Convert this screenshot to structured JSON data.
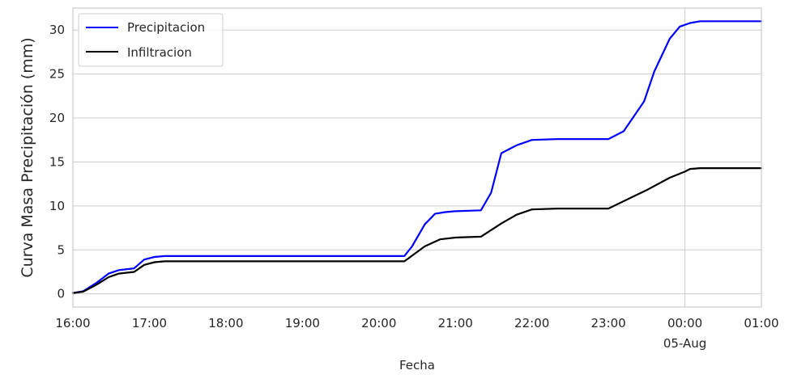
{
  "chart_data": {
    "type": "line",
    "title": "",
    "xlabel": "Fecha",
    "ylabel": "Curva Masa Precipitación (mm)",
    "ylim": [
      -1.5,
      32.5
    ],
    "xlim": [
      0,
      9
    ],
    "grid": true,
    "legend_position": "top-left",
    "x_ticks": [
      {
        "value": 0,
        "label": "16:00",
        "sublabel": ""
      },
      {
        "value": 1,
        "label": "17:00",
        "sublabel": ""
      },
      {
        "value": 2,
        "label": "18:00",
        "sublabel": ""
      },
      {
        "value": 3,
        "label": "19:00",
        "sublabel": ""
      },
      {
        "value": 4,
        "label": "20:00",
        "sublabel": ""
      },
      {
        "value": 5,
        "label": "21:00",
        "sublabel": ""
      },
      {
        "value": 6,
        "label": "22:00",
        "sublabel": ""
      },
      {
        "value": 7,
        "label": "23:00",
        "sublabel": ""
      },
      {
        "value": 8,
        "label": "00:00",
        "sublabel": "05-Aug"
      },
      {
        "value": 9,
        "label": "01:00",
        "sublabel": ""
      }
    ],
    "y_ticks": [
      0,
      5,
      10,
      15,
      20,
      25,
      30
    ],
    "series": [
      {
        "name": "Precipitacion",
        "color": "#0000ff",
        "x": [
          0,
          0.133,
          0.3,
          0.467,
          0.6,
          0.8,
          0.933,
          1.067,
          1.2,
          1.333,
          2.0,
          3.0,
          4.0,
          4.333,
          4.433,
          4.6,
          4.733,
          4.867,
          5.0,
          5.333,
          5.467,
          5.6,
          5.8,
          6.0,
          6.333,
          6.6,
          6.867,
          7.0,
          7.2,
          7.467,
          7.6,
          7.8,
          7.933,
          8.067,
          8.2,
          8.5,
          9.0
        ],
        "y": [
          0.1,
          0.3,
          1.2,
          2.3,
          2.7,
          2.9,
          3.9,
          4.2,
          4.3,
          4.3,
          4.3,
          4.3,
          4.3,
          4.3,
          5.4,
          7.9,
          9.1,
          9.3,
          9.4,
          9.5,
          11.5,
          16.0,
          16.9,
          17.5,
          17.6,
          17.6,
          17.6,
          17.6,
          18.5,
          21.9,
          25.3,
          29.0,
          30.4,
          30.8,
          31.0,
          31.0,
          31.0
        ]
      },
      {
        "name": "Infiltracion",
        "color": "#000000",
        "x": [
          0,
          0.133,
          0.3,
          0.467,
          0.6,
          0.8,
          0.933,
          1.067,
          1.2,
          1.333,
          2.0,
          3.0,
          4.0,
          4.333,
          4.6,
          4.8,
          5.0,
          5.333,
          5.6,
          5.8,
          6.0,
          6.333,
          6.6,
          6.867,
          7.0,
          7.5,
          7.8,
          8.0,
          8.067,
          8.2,
          8.5,
          9.0
        ],
        "y": [
          0.1,
          0.25,
          1.0,
          1.9,
          2.3,
          2.5,
          3.3,
          3.6,
          3.7,
          3.7,
          3.7,
          3.7,
          3.7,
          3.7,
          5.4,
          6.2,
          6.4,
          6.5,
          8.0,
          9.0,
          9.6,
          9.7,
          9.7,
          9.7,
          9.7,
          11.8,
          13.2,
          13.9,
          14.2,
          14.3,
          14.3,
          14.3
        ]
      }
    ]
  }
}
